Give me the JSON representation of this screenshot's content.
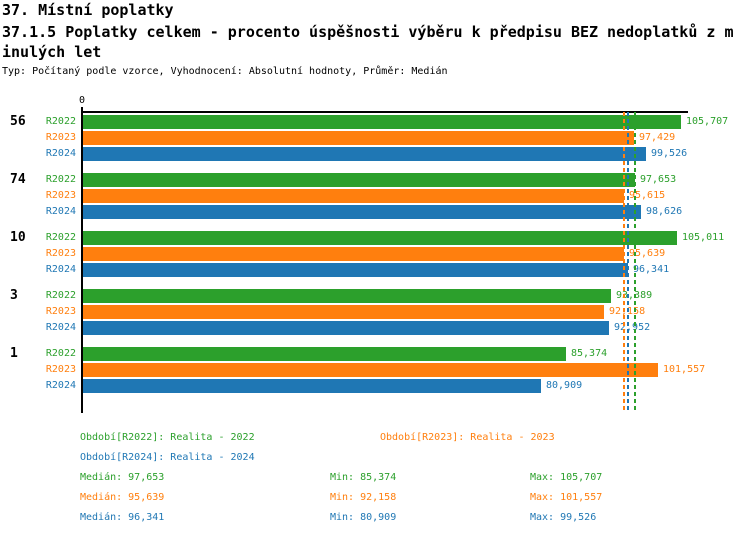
{
  "header": {
    "title_line1": "37. Místní poplatky",
    "title_line2": "37.1.5 Poplatky celkem - procento úspěšnosti výběru k předpisu BEZ nedoplatků z m",
    "title_line3": "inulých let",
    "meta_line": "Typ: Počítaný podle vzorce, Vyhodnocení: Absolutní hodnoty, Průměr: Medián"
  },
  "chart_data": {
    "type": "bar",
    "orientation": "horizontal",
    "title": "37.1.5 Poplatky celkem - procento úspěšnosti výběru k předpisu BEZ nedoplatků z minulých let",
    "axis_zero_label": "0",
    "xlim": [
      0,
      107
    ],
    "grid": false,
    "legend_position": "bottom",
    "categories": [
      "56",
      "74",
      "10",
      "3",
      "1"
    ],
    "series": [
      {
        "name": "R2022",
        "color": "#2CA02C",
        "values": [
          105.707,
          97.653,
          105.011,
          93.389,
          85.374
        ],
        "value_labels": [
          "105,707",
          "97,653",
          "105,011",
          "93,389",
          "85,374"
        ],
        "median": 97.653
      },
      {
        "name": "R2023",
        "color": "#FF7F0E",
        "values": [
          97.429,
          95.615,
          95.639,
          92.158,
          101.557
        ],
        "value_labels": [
          "97,429",
          "95,615",
          "95,639",
          "92,158",
          "101,557"
        ],
        "median": 95.639
      },
      {
        "name": "R2024",
        "color": "#1F77B4",
        "values": [
          99.526,
          98.626,
          96.341,
          92.952,
          80.909
        ],
        "value_labels": [
          "99,526",
          "98,626",
          "96,341",
          "92,952",
          "80,909"
        ],
        "median": 96.341
      }
    ]
  },
  "footer": {
    "legend": [
      {
        "label": "Období[R2022]: Realita - 2022",
        "color": "#2CA02C"
      },
      {
        "label": "Období[R2023]: Realita - 2023",
        "color": "#FF7F0E"
      },
      {
        "label": "Období[R2024]: Realita - 2024",
        "color": "#1F77B4"
      }
    ],
    "stats": [
      {
        "median": "Medián: 97,653",
        "min": "Min: 85,374",
        "max": "Max: 105,707",
        "color": "#2CA02C"
      },
      {
        "median": "Medián: 95,639",
        "min": "Min: 92,158",
        "max": "Max: 101,557",
        "color": "#FF7F0E"
      },
      {
        "median": "Medián: 96,341",
        "min": "Min: 80,909",
        "max": "Max: 99,526",
        "color": "#1F77B4"
      }
    ]
  }
}
